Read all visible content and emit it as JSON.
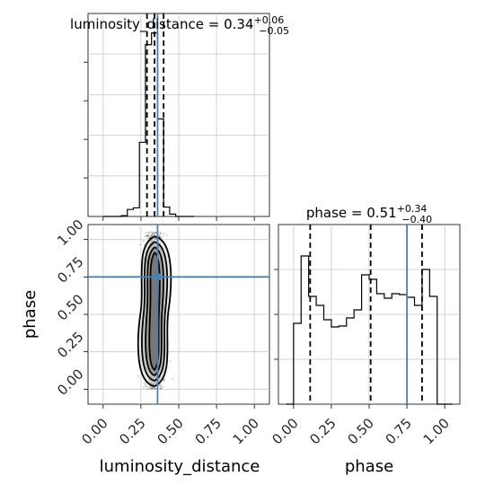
{
  "chart_data": [
    {
      "type": "histogram",
      "panel": "luminosity_distance marginal",
      "title_parts": {
        "name": "luminosity_distance",
        "eq": " = ",
        "value": "0.34",
        "plus": "+0.06",
        "minus": "−0.05"
      },
      "xlim": [
        -0.1,
        1.1
      ],
      "xticks": [
        0.0,
        0.25,
        0.5,
        0.75,
        1.0
      ],
      "bin_edges": [
        0.0,
        0.04,
        0.08,
        0.12,
        0.16,
        0.2,
        0.24,
        0.28,
        0.32,
        0.36,
        0.4,
        0.44,
        0.48,
        0.52,
        0.56,
        0.6
      ],
      "counts": [
        0,
        0,
        0,
        0.2,
        1.8,
        2.2,
        19,
        44,
        47,
        25,
        2.4,
        0.6,
        0,
        0,
        0
      ],
      "ylim": [
        0,
        52
      ],
      "quantile_lines": [
        0.29,
        0.34,
        0.4
      ],
      "truth_value": 0.36,
      "grid": true
    },
    {
      "type": "histogram",
      "panel": "phase marginal",
      "title_parts": {
        "name": "phase",
        "eq": " = ",
        "value": "0.51",
        "plus": "+0.34",
        "minus": "−0.40"
      },
      "xlim": [
        -0.1,
        1.1
      ],
      "xticks": [
        0.0,
        0.25,
        0.5,
        0.75,
        1.0
      ],
      "bin_edges": [
        -0.05,
        0.0,
        0.05,
        0.1,
        0.15,
        0.2,
        0.25,
        0.3,
        0.35,
        0.4,
        0.45,
        0.5,
        0.55,
        0.6,
        0.65,
        0.7,
        0.75,
        0.8,
        0.85,
        0.9,
        0.95,
        1.0,
        1.05
      ],
      "counts": [
        0,
        0.9,
        1.65,
        1.2,
        1.1,
        0.94,
        0.86,
        0.87,
        0.96,
        1.05,
        1.44,
        1.39,
        1.23,
        1.18,
        1.23,
        1.22,
        1.19,
        1.1,
        1.5,
        1.2,
        0,
        0
      ],
      "ylim": [
        0,
        2.0
      ],
      "yticks": [
        0.5,
        1.0,
        1.5
      ],
      "quantile_lines": [
        0.11,
        0.51,
        0.85
      ],
      "truth_value": 0.75,
      "grid": true
    },
    {
      "type": "scatter",
      "panel": "2D posterior",
      "xlabel": "luminosity_distance",
      "ylabel": "phase",
      "xlim": [
        -0.1,
        1.1
      ],
      "ylim": [
        -0.1,
        1.1
      ],
      "xticks": [
        0.0,
        0.25,
        0.5,
        0.75,
        1.0
      ],
      "yticks": [
        0.0,
        0.25,
        0.5,
        0.75,
        1.0
      ],
      "x_distribution": {
        "mean": 0.34,
        "std": 0.03
      },
      "y_range": [
        0.0,
        1.05
      ],
      "truth": {
        "x": 0.36,
        "y": 0.75
      },
      "contour_levels": 3,
      "grid": true
    }
  ],
  "tick_labels": {
    "a": [
      "0.00",
      "0.25",
      "0.50",
      "0.75",
      "1.00"
    ]
  },
  "colors": {
    "truth": "#4682b4",
    "hist_line": "#000000",
    "grid": "#c8c8c8",
    "points": "#000000"
  }
}
